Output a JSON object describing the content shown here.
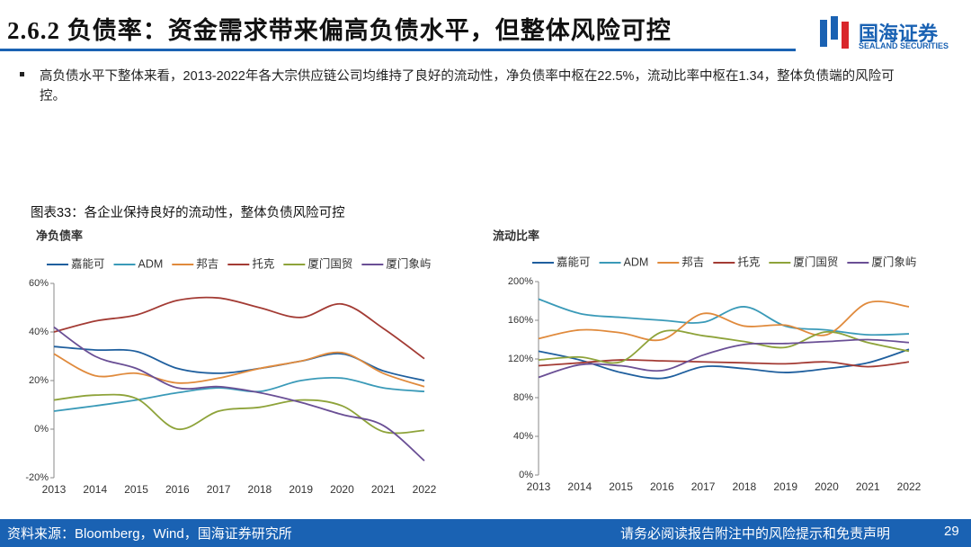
{
  "header": {
    "title": "2.6.2 负债率：资金需求带来偏高负债水平，但整体风险可控",
    "logo_cn": "国海证券",
    "logo_en": "SEALAND SECURITIES"
  },
  "bullet": "高负债水平下整体来看，2013-2022年各大宗供应链公司均维持了良好的流动性，净负债率中枢在22.5%，流动比率中枢在1.34，整体负债端的风险可控。",
  "figure_caption": "图表33：各企业保持良好的流动性，整体负债风险可控",
  "chart_data": [
    {
      "type": "line",
      "title": "净负债率",
      "legend": "top",
      "categories": [
        "2013",
        "2014",
        "2015",
        "2016",
        "2017",
        "2018",
        "2019",
        "2020",
        "2021",
        "2022"
      ],
      "ylim": [
        -20,
        60
      ],
      "yticks": [
        {
          "value": -20,
          "label": "-20%"
        },
        {
          "value": 0,
          "label": "0%"
        },
        {
          "value": 20,
          "label": "20%"
        },
        {
          "value": 40,
          "label": "40%"
        },
        {
          "value": 60,
          "label": "60%"
        }
      ],
      "series": [
        {
          "name": "嘉能可",
          "color": "#1f5f9e",
          "values": [
            34,
            32.6,
            32,
            25,
            23,
            25,
            28,
            31,
            24,
            20
          ]
        },
        {
          "name": "ADM",
          "color": "#3a9ab8",
          "values": [
            7.4,
            9.6,
            12,
            15,
            17,
            15.5,
            20,
            21,
            17,
            15.5
          ]
        },
        {
          "name": "邦吉",
          "color": "#e08a3c",
          "values": [
            31,
            22,
            23,
            19,
            21,
            25,
            28,
            31.5,
            23,
            17.5
          ]
        },
        {
          "name": "托克",
          "color": "#a33b34",
          "values": [
            40,
            44.5,
            47,
            53,
            54,
            50,
            46,
            51.5,
            41.5,
            29
          ]
        },
        {
          "name": "厦门国贸",
          "color": "#8ea33a",
          "values": [
            12,
            14,
            12.6,
            0,
            7.4,
            9,
            12,
            9.6,
            -1,
            -0.5
          ]
        },
        {
          "name": "厦门象屿",
          "color": "#6a4f95",
          "values": [
            42,
            30,
            25,
            17,
            17.5,
            15,
            11,
            6,
            1.5,
            -13
          ]
        }
      ]
    },
    {
      "type": "line",
      "title": "流动比率",
      "legend": "top",
      "categories": [
        "2013",
        "2014",
        "2015",
        "2016",
        "2017",
        "2018",
        "2019",
        "2020",
        "2021",
        "2022"
      ],
      "ylim": [
        0,
        200
      ],
      "yticks": [
        {
          "value": 0,
          "label": "0%"
        },
        {
          "value": 40,
          "label": "40%"
        },
        {
          "value": 80,
          "label": "80%"
        },
        {
          "value": 120,
          "label": "120%"
        },
        {
          "value": 160,
          "label": "160%"
        },
        {
          "value": 200,
          "label": "200%"
        }
      ],
      "series": [
        {
          "name": "嘉能可",
          "color": "#1f5f9e",
          "values": [
            128,
            119,
            106,
            100,
            112,
            110,
            106,
            110,
            116,
            130
          ]
        },
        {
          "name": "ADM",
          "color": "#3a9ab8",
          "values": [
            182,
            167,
            163,
            160,
            158,
            174,
            154,
            150,
            145,
            146
          ]
        },
        {
          "name": "邦吉",
          "color": "#e08a3c",
          "values": [
            141,
            150,
            147,
            140,
            167,
            154,
            155,
            145,
            178,
            174
          ]
        },
        {
          "name": "托克",
          "color": "#a33b34",
          "values": [
            113,
            116,
            119,
            118,
            117,
            116,
            115,
            117,
            112,
            117
          ]
        },
        {
          "name": "厦门国贸",
          "color": "#8ea33a",
          "values": [
            119,
            122,
            117,
            148,
            144,
            138,
            132,
            148,
            137,
            128
          ]
        },
        {
          "name": "厦门象屿",
          "color": "#6a4f95",
          "values": [
            101,
            114,
            113,
            108,
            124,
            135,
            136,
            138,
            140,
            137
          ]
        }
      ]
    }
  ],
  "footer": {
    "source": "资料来源：Bloomberg，Wind，国海证券研究所",
    "disclaimer": "请务必阅读报告附注中的风险提示和免责声明",
    "page": "29"
  }
}
